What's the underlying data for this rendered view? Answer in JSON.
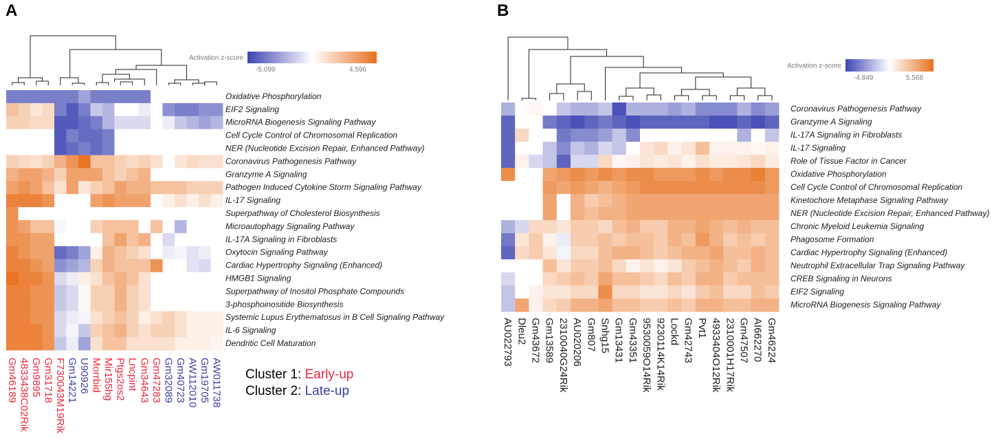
{
  "panels": {
    "a": "A",
    "b": "B"
  },
  "legend_clusters": {
    "c1_label": "Cluster 1:",
    "c1_value": "Early-up",
    "c1_color": "#e8283b",
    "c2_label": "Cluster 2:",
    "c2_value": "Late-up",
    "c2_color": "#3a3e9c"
  },
  "colors": {
    "neg": "#3d44b2",
    "mid": "#ffffff",
    "pos": "#e8711f"
  },
  "chart_data": [
    {
      "type": "heatmap",
      "panel": "A",
      "legend": {
        "title": "Activation z-score",
        "min_label": "-5.099",
        "max_label": "4.596",
        "min": -5.099,
        "max": 4.596
      },
      "columns": [
        "Gm46189",
        "4833438C02Rik",
        "Gm9895",
        "Gm31718",
        "F730043M19Rik",
        "Gm14221",
        "U90926",
        "Morrbid",
        "Mir155hg",
        "Ptgs2os2",
        "Lncpint",
        "Gm34643",
        "Gm47283",
        "Gm32089",
        "Gm40723",
        "AW112010",
        "Gm19705",
        "AW011738"
      ],
      "column_clusters": [
        1,
        1,
        1,
        1,
        1,
        2,
        2,
        1,
        1,
        1,
        1,
        1,
        1,
        2,
        2,
        2,
        2,
        2
      ],
      "rows": [
        "Oxidative Phosphorylation",
        "EIF2 Signaling",
        "MicroRNA Biogenesis Signaling Pathway",
        "Cell Cycle Control of Chromosomal Replication",
        "NER (Nucleotide Excision Repair, Enhanced Pathway)",
        "Coronavirus Pathogenesis Pathway",
        "Granzyme A Signaling",
        "Pathogen Induced Cytokine Storm Signaling Pathway",
        "IL-17 Signaling",
        "Superpathway of Cholesterol Biosynthesis",
        "Microautophagy Signaling Pathway",
        "IL-17A Signaling in Fibroblasts",
        "Oxytocin Signaling Pathway",
        "Cardiac Hypertrophy Signaling (Enhanced)",
        "HMGB1 Signaling",
        "Superpathway of Inositol Phosphate Compounds",
        "3-phosphoinositide Biosynthesis",
        "Systemic Lupus Erythematosus in B Cell Signaling Pathway",
        "IL-6 Signaling",
        "Dendritic Cell Maturation"
      ],
      "values": [
        [
          -3.5,
          -3.5,
          -3.5,
          -3.5,
          -3.5,
          -3.5,
          -2.5,
          -3.5,
          -3.5,
          -3.5,
          -3.5,
          -3.5,
          0,
          0,
          0,
          0,
          0,
          0
        ],
        [
          2.0,
          1.5,
          0.8,
          1.2,
          -3.5,
          -4.5,
          -3.5,
          -1.5,
          -2.0,
          0,
          0,
          -0.5,
          0,
          -3.0,
          -3.5,
          -3.5,
          -3.0,
          -3.0
        ],
        [
          1.5,
          1.5,
          1.2,
          1.2,
          -4.5,
          -4.5,
          -4.0,
          -3.5,
          -2.0,
          -1.0,
          -1.0,
          -1.0,
          0,
          -0.5,
          -1.5,
          -2.0,
          -2.5,
          -2.0
        ],
        [
          0,
          0,
          0,
          0,
          -4.5,
          -3.5,
          -4.0,
          -4.0,
          -3.5,
          0,
          0,
          0,
          0,
          0,
          0,
          0,
          0,
          0
        ],
        [
          0,
          0,
          0,
          0,
          -4.5,
          -4.0,
          -3.5,
          -4.0,
          -3.5,
          0,
          0,
          0,
          0,
          0,
          0,
          0,
          0,
          0
        ],
        [
          1.5,
          1.2,
          1.0,
          1.5,
          2.5,
          3.5,
          4.5,
          2.0,
          2.0,
          1.5,
          1.2,
          1.5,
          1.0,
          0,
          0.8,
          1.2,
          1.0,
          1.0
        ],
        [
          2.5,
          3.0,
          3.0,
          2.5,
          1.5,
          3.0,
          3.0,
          3.0,
          2.0,
          1.5,
          2.0,
          2.5,
          0,
          0,
          0,
          0,
          0,
          0
        ],
        [
          3.0,
          3.5,
          3.0,
          2.0,
          1.0,
          3.0,
          0.8,
          1.5,
          2.0,
          3.0,
          2.5,
          2.5,
          2.0,
          2.0,
          2.0,
          1.5,
          1.5,
          1.5
        ],
        [
          4.0,
          4.0,
          4.0,
          3.5,
          0,
          0,
          0,
          3.0,
          3.5,
          3.0,
          3.0,
          3.0,
          0,
          0.5,
          1.0,
          0.5,
          1.0,
          0.5
        ],
        [
          3.5,
          0,
          0,
          0,
          0,
          0,
          0,
          0,
          0,
          0,
          0,
          0,
          0,
          0,
          0,
          0,
          0,
          0
        ],
        [
          3.5,
          3.0,
          2.0,
          2.0,
          -0.2,
          0,
          0,
          1.5,
          2.0,
          2.0,
          2.0,
          0,
          2.0,
          0,
          -2.0,
          0,
          0,
          0
        ],
        [
          3.5,
          3.5,
          3.0,
          3.0,
          0,
          0,
          0,
          0,
          2.0,
          3.0,
          2.0,
          2.5,
          0,
          -1.0,
          0,
          0,
          0,
          0
        ],
        [
          4.0,
          3.5,
          3.0,
          3.0,
          -4.0,
          -3.5,
          -2.5,
          0.5,
          2.5,
          2.0,
          1.5,
          1.0,
          0,
          -0.5,
          -0.3,
          -0.8,
          -0.5,
          0
        ],
        [
          4.0,
          4.0,
          3.5,
          3.0,
          -3.0,
          -2.5,
          -2.0,
          1.5,
          2.5,
          2.0,
          2.0,
          2.0,
          3.5,
          0,
          0,
          -0.8,
          -1.0,
          0
        ],
        [
          4.5,
          4.0,
          4.0,
          3.5,
          -1.0,
          -0.5,
          0.5,
          1.0,
          2.0,
          2.5,
          2.0,
          1.0,
          0,
          0,
          0,
          0,
          0,
          0
        ],
        [
          4.0,
          4.0,
          3.5,
          3.5,
          -1.5,
          -1.0,
          0.2,
          1.5,
          1.5,
          2.5,
          1.5,
          1.0,
          0,
          0,
          0,
          0,
          0,
          0
        ],
        [
          4.0,
          4.0,
          3.5,
          3.5,
          -1.5,
          -1.0,
          0.2,
          1.5,
          1.5,
          2.5,
          1.5,
          1.0,
          0,
          0,
          0,
          0,
          0,
          0
        ],
        [
          4.0,
          4.0,
          3.5,
          3.5,
          -1.0,
          -0.5,
          -0.3,
          1.0,
          1.5,
          2.0,
          1.5,
          0.5,
          1.0,
          1.5,
          1.0,
          0.5,
          0.5,
          0.5
        ],
        [
          4.0,
          4.0,
          4.0,
          3.5,
          -1.0,
          -0.3,
          -1.5,
          1.5,
          2.0,
          2.5,
          1.5,
          1.0,
          1.5,
          1.5,
          1.0,
          0.5,
          0.5,
          0.5
        ],
        [
          4.0,
          4.0,
          4.0,
          3.5,
          -1.5,
          -0.5,
          -2.5,
          1.0,
          2.0,
          2.0,
          1.0,
          1.0,
          1.0,
          1.0,
          0.5,
          0.5,
          0.5,
          0.3
        ]
      ]
    },
    {
      "type": "heatmap",
      "panel": "B",
      "legend": {
        "title": "Activation z-score",
        "min_label": "-4.849",
        "max_label": "5.568",
        "min": -4.849,
        "max": 5.568
      },
      "columns": [
        "AU022793",
        "Dleu2",
        "Gm43672",
        "Gm13589",
        "2310040G24Rik",
        "AU020206",
        "Gm807",
        "Snhg15",
        "Gm13431",
        "Gm43351",
        "9530059O14Rik",
        "9230114K14Rik",
        "Lockd",
        "Gm42743",
        "Pvt1",
        "4933404O12Rik",
        "2310001H17Rik",
        "Gm47507",
        "AI662270",
        "Gm46224"
      ],
      "rows": [
        "Coronavirus Pathogenesis Pathway",
        "Granzyme A Signaling",
        "IL-17A Signaling in Fibroblasts",
        "IL-17 Signaling",
        "Role of Tissue Factor in Cancer",
        "Oxidative Phosphorylation",
        "Cell Cycle Control of Chromosomal Replication",
        "Kinetochore Metaphase Signaling Pathway",
        "NER (Nucleotide Excision Repair, Enhanced Pathway)",
        "Chronic Myeloid Leukemia Signaling",
        "Phagosome Formation",
        "Cardiac Hypertrophy Signaling (Enhanced)",
        "Neutrophil Extracellular Trap Signaling Pathway",
        "CREB Signaling in Neurons",
        "EIF2 Signaling",
        "MicroRNA Biogenesis Signaling Pathway"
      ],
      "values": [
        [
          -2.0,
          0,
          0.3,
          0,
          -1.5,
          -2.0,
          -2.0,
          -1.5,
          -4.5,
          -2.0,
          -2.0,
          -2.0,
          -2.5,
          -2.0,
          -3.0,
          -3.0,
          -3.0,
          -2.0,
          -3.0,
          -2.5
        ],
        [
          -4.0,
          0,
          0,
          -3.5,
          -4.0,
          -4.5,
          -4.0,
          -3.5,
          -4.0,
          -4.5,
          -4.0,
          -4.0,
          -4.0,
          -4.0,
          -4.0,
          -4.5,
          -4.5,
          -4.0,
          -4.5,
          -4.0
        ],
        [
          -4.0,
          1.5,
          0,
          0,
          -3.5,
          -3.0,
          -3.0,
          -2.5,
          -1.5,
          -3.0,
          0,
          0,
          0,
          0,
          0,
          0,
          0,
          -2.0,
          0,
          -1.5
        ],
        [
          -4.0,
          0,
          0,
          -1.5,
          -3.0,
          -1.5,
          -2.0,
          -1.0,
          -1.5,
          0,
          1.0,
          1.5,
          0.5,
          1.0,
          2.5,
          0.5,
          0.5,
          0.5,
          0.3,
          0.5
        ],
        [
          -4.0,
          0.5,
          -1.0,
          -1.5,
          -4.0,
          -1.0,
          -1.0,
          1.5,
          0.3,
          0.5,
          1.0,
          0.8,
          1.0,
          0.5,
          1.2,
          0.8,
          0.8,
          1.0,
          1.5,
          0.8
        ],
        [
          4.5,
          0,
          0,
          3.5,
          4.0,
          4.5,
          4.0,
          4.5,
          4.0,
          4.5,
          4.5,
          4.0,
          4.0,
          4.0,
          4.5,
          4.0,
          4.5,
          4.5,
          5.0,
          4.0
        ],
        [
          0,
          0,
          0,
          4.0,
          3.5,
          4.0,
          3.5,
          3.0,
          3.5,
          4.0,
          4.5,
          4.5,
          4.5,
          4.5,
          4.5,
          4.5,
          4.5,
          4.5,
          4.5,
          4.0
        ],
        [
          0,
          0,
          0,
          3.5,
          0,
          3.0,
          2.0,
          2.5,
          3.0,
          3.5,
          3.5,
          3.5,
          3.5,
          3.5,
          3.5,
          3.5,
          3.5,
          3.5,
          3.5,
          3.5
        ],
        [
          0,
          0,
          0,
          3.5,
          0,
          3.0,
          2.5,
          3.0,
          3.0,
          3.5,
          3.5,
          3.5,
          3.5,
          3.5,
          3.5,
          3.5,
          3.5,
          3.5,
          3.5,
          3.5
        ],
        [
          -2.0,
          -1.0,
          1.5,
          1.5,
          1.0,
          2.0,
          2.0,
          1.5,
          2.5,
          3.0,
          2.0,
          2.0,
          3.0,
          3.0,
          3.5,
          3.0,
          2.5,
          3.0,
          2.5,
          2.5
        ],
        [
          -3.5,
          1.0,
          2.0,
          0.5,
          -0.5,
          2.0,
          2.0,
          2.5,
          2.0,
          2.5,
          2.5,
          2.0,
          3.0,
          2.5,
          4.0,
          3.0,
          2.0,
          2.5,
          2.0,
          2.5
        ],
        [
          -4.0,
          1.5,
          2.0,
          1.0,
          -0.3,
          1.5,
          1.5,
          2.5,
          3.0,
          3.0,
          2.5,
          2.0,
          2.5,
          3.0,
          3.0,
          3.5,
          2.5,
          2.5,
          3.0,
          2.5
        ],
        [
          0,
          0,
          0,
          2.5,
          1.0,
          2.0,
          2.0,
          2.5,
          1.5,
          0.5,
          1.0,
          0.5,
          1.0,
          2.0,
          2.5,
          3.0,
          2.5,
          2.0,
          3.0,
          2.5
        ],
        [
          -1.0,
          0,
          0,
          1.5,
          2.0,
          2.5,
          2.0,
          3.5,
          2.5,
          2.5,
          2.0,
          1.5,
          2.5,
          2.0,
          3.0,
          3.0,
          2.0,
          2.5,
          2.5,
          2.5
        ],
        [
          -1.5,
          0,
          0.5,
          1.0,
          1.0,
          1.5,
          1.5,
          4.5,
          1.5,
          1.5,
          1.0,
          1.0,
          1.5,
          1.0,
          2.0,
          2.5,
          1.5,
          1.5,
          2.5,
          2.0
        ],
        [
          -1.5,
          3.5,
          0.5,
          1.5,
          2.0,
          3.0,
          3.0,
          3.5,
          2.5,
          2.5,
          2.0,
          2.0,
          2.5,
          2.0,
          3.0,
          3.0,
          2.5,
          2.5,
          3.0,
          3.0
        ]
      ]
    }
  ]
}
